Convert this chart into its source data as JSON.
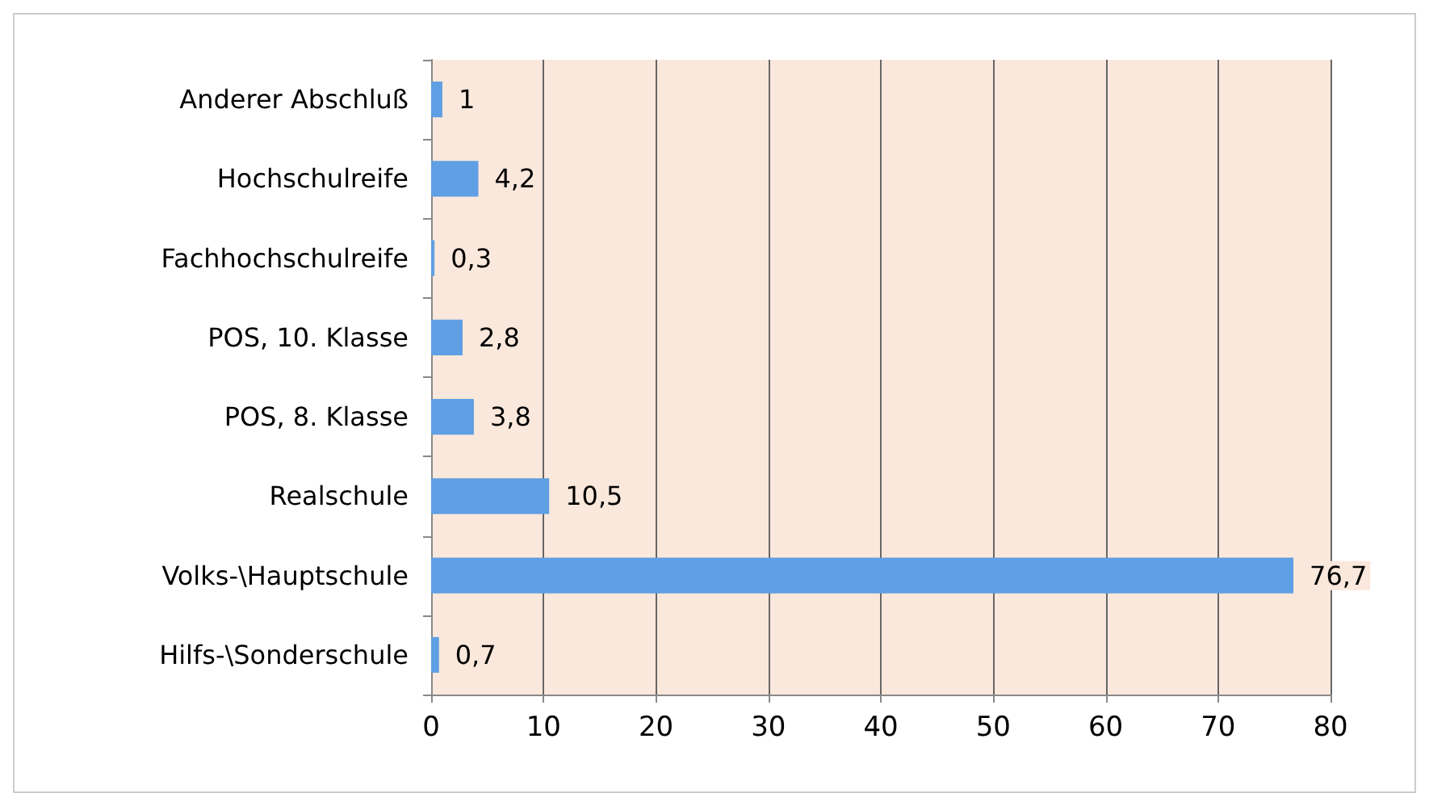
{
  "chart_data": {
    "type": "bar",
    "orientation": "horizontal",
    "categories": [
      "Anderer Abschluß",
      "Hochschulreife",
      "Fachhochschulreife",
      "POS, 10. Klasse",
      "POS, 8. Klasse",
      "Realschule",
      "Volks-\\Hauptschule",
      "Hilfs-\\Sonderschule"
    ],
    "values": [
      1,
      4.2,
      0.3,
      2.8,
      3.8,
      10.5,
      76.7,
      0.7
    ],
    "value_labels": [
      "1",
      "4,2",
      "0,3",
      "2,8",
      "3,8",
      "10,5",
      "76,7",
      "0,7"
    ],
    "color": "#5f9fe3",
    "xlim": [
      0,
      80
    ],
    "xticks": [
      0,
      10,
      20,
      30,
      40,
      50,
      60,
      70,
      80
    ],
    "grid": "x"
  }
}
